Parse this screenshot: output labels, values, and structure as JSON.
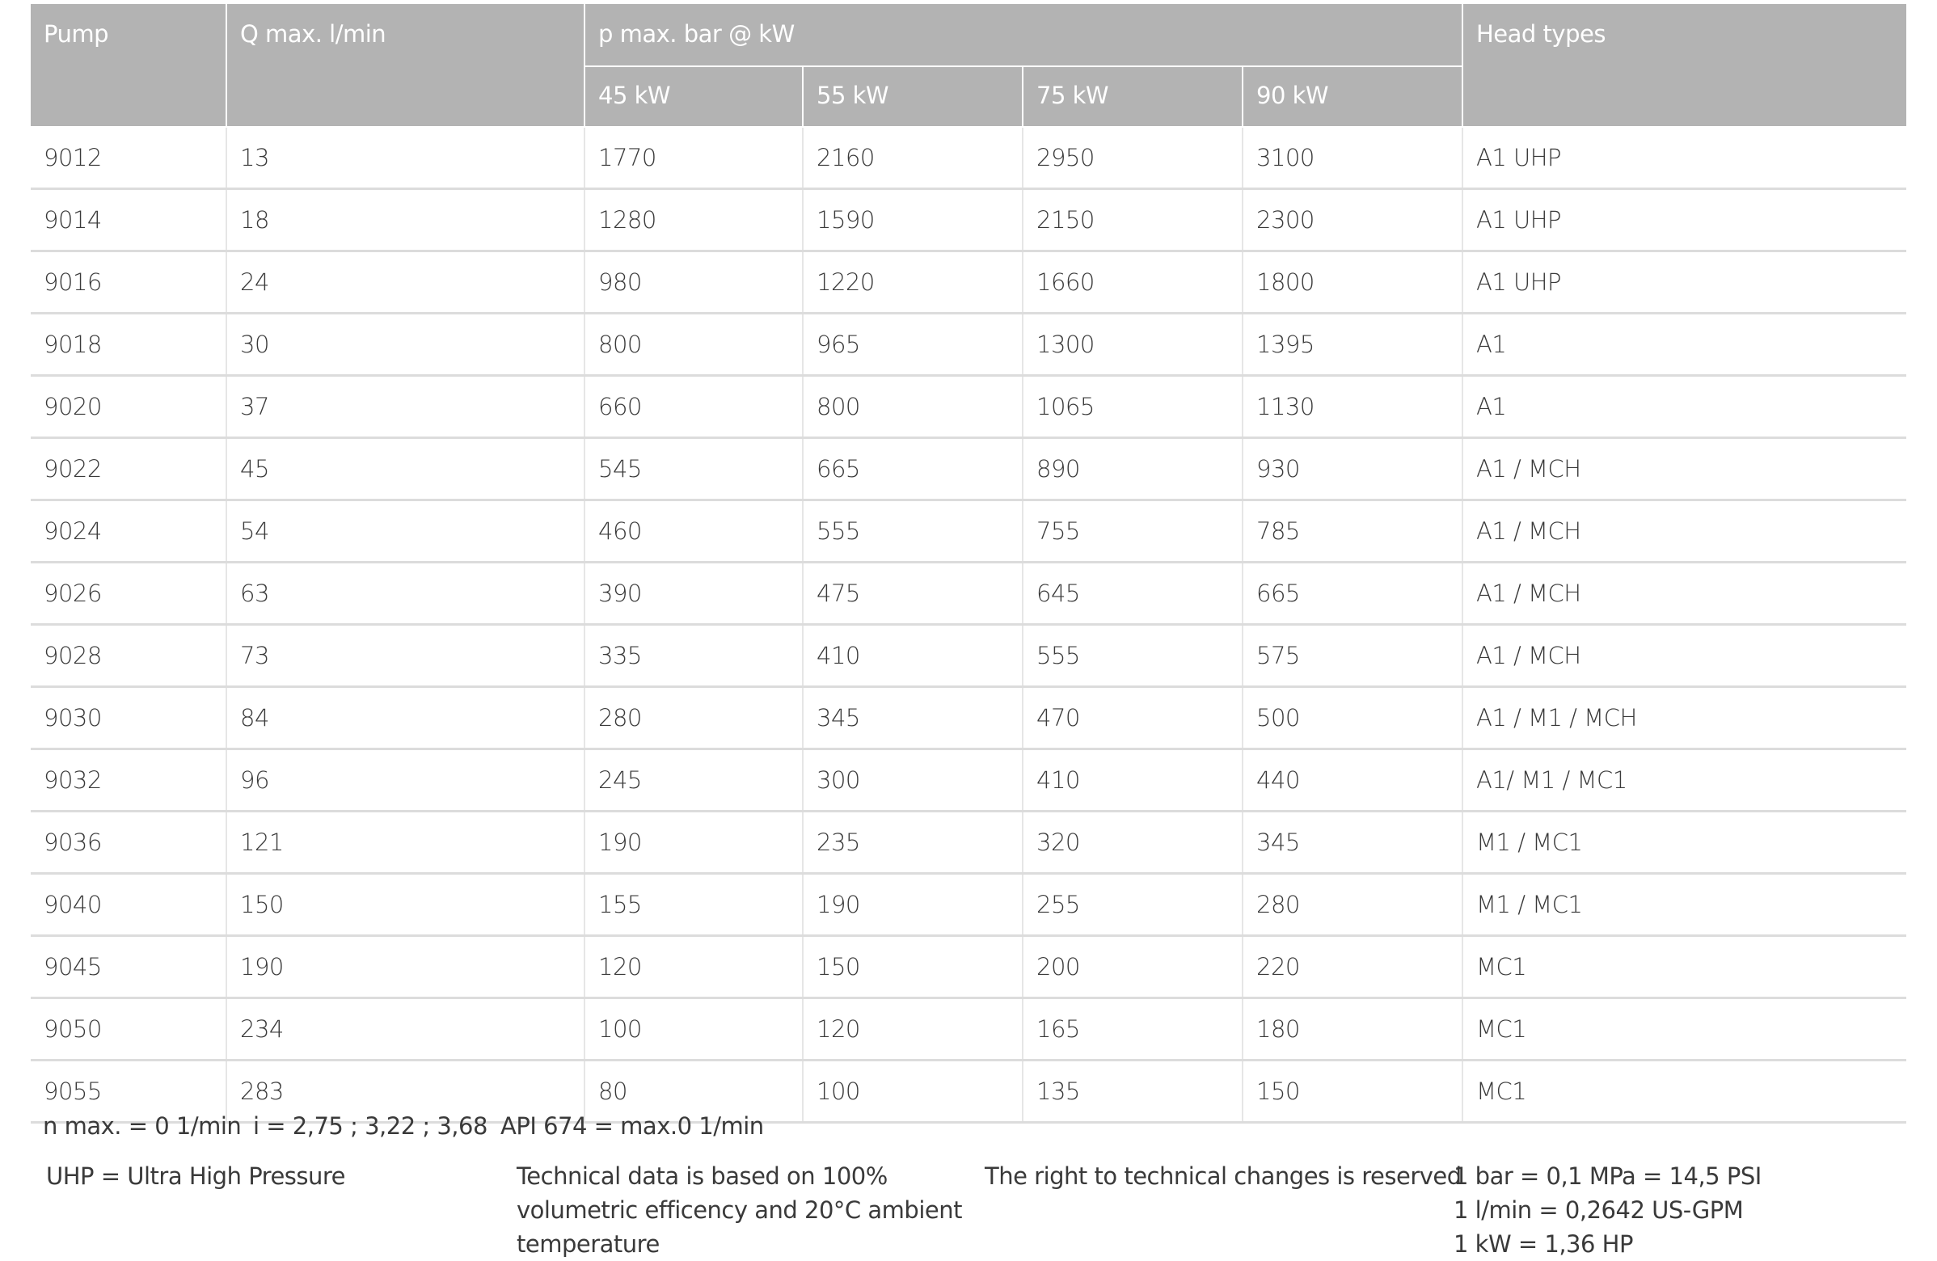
{
  "table": {
    "headers": {
      "pump": "Pump",
      "q_max": "Q max. l/min",
      "p_max": "p max. bar @ kW",
      "head_types": "Head types",
      "power": [
        "45 kW",
        "55 kW",
        "75 kW",
        "90 kW"
      ]
    },
    "rows": [
      [
        "9012",
        "13",
        "1770",
        "2160",
        "2950",
        "3100",
        "A1 UHP"
      ],
      [
        "9014",
        "18",
        "1280",
        "1590",
        "2150",
        "2300",
        "A1 UHP"
      ],
      [
        "9016",
        "24",
        "980",
        "1220",
        "1660",
        "1800",
        "A1 UHP"
      ],
      [
        "9018",
        "30",
        "800",
        "965",
        "1300",
        "1395",
        "A1"
      ],
      [
        "9020",
        "37",
        "660",
        "800",
        "1065",
        "1130",
        "A1"
      ],
      [
        "9022",
        "45",
        "545",
        "665",
        "890",
        "930",
        "A1 / MCH"
      ],
      [
        "9024",
        "54",
        "460",
        "555",
        "755",
        "785",
        "A1 / MCH"
      ],
      [
        "9026",
        "63",
        "390",
        "475",
        "645",
        "665",
        "A1 / MCH"
      ],
      [
        "9028",
        "73",
        "335",
        "410",
        "555",
        "575",
        "A1 / MCH"
      ],
      [
        "9030",
        "84",
        "280",
        "345",
        "470",
        "500",
        "A1 / M1 / MCH"
      ],
      [
        "9032",
        "96",
        "245",
        "300",
        "410",
        "440",
        "A1/ M1 / MC1"
      ],
      [
        "9036",
        "121",
        "190",
        "235",
        "320",
        "345",
        "M1 / MC1"
      ],
      [
        "9040",
        "150",
        "155",
        "190",
        "255",
        "280",
        "M1 / MC1"
      ],
      [
        "9045",
        "190",
        "120",
        "150",
        "200",
        "220",
        "MC1"
      ],
      [
        "9050",
        "234",
        "100",
        "120",
        "165",
        "180",
        "MC1"
      ],
      [
        "9055",
        "283",
        "80",
        "100",
        "135",
        "150",
        "MC1"
      ]
    ]
  },
  "footer": {
    "n_max": "n max. = 0 1/min",
    "ratio": "i = 2,75 ; 3,22 ; 3,68",
    "api": "API 674 = max.0 1/min",
    "uhp": "UHP = Ultra High Pressure",
    "technical": [
      "Technical data is based on 100%",
      "volumetric efficency and 20°C ambient",
      "temperature"
    ],
    "rights": "The right to technical changes is reserved",
    "conversions": [
      "1 bar = 0,1 MPa = 14,5 PSI",
      "1 l/min = 0,2642 US-GPM",
      "1 kW = 1,36 HP"
    ]
  }
}
